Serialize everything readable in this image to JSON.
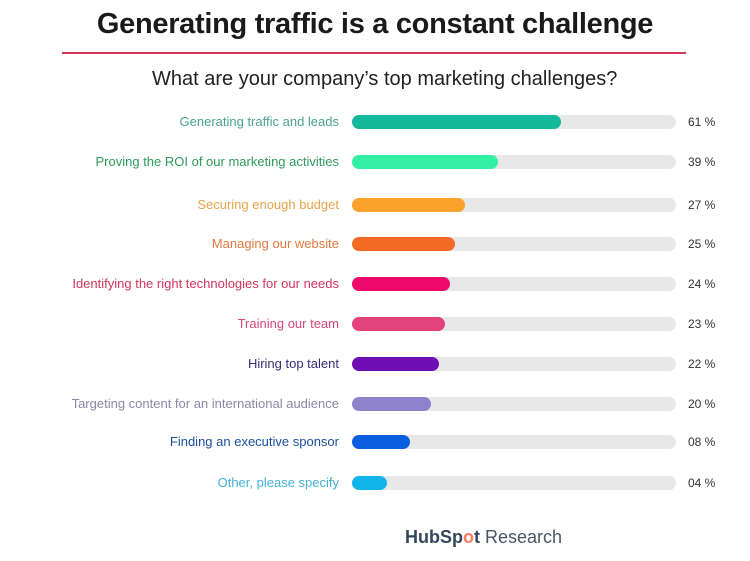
{
  "header": {
    "title": "Generating traffic is a constant challenge",
    "subtitle": "What are your company’s top marketing challenges?",
    "rule_color": "#d6335b"
  },
  "chart_data": {
    "type": "bar",
    "orientation": "horizontal",
    "title": "Generating traffic is a constant challenge",
    "subtitle": "What are your company’s top marketing challenges?",
    "xlabel": "",
    "ylabel": "",
    "xlim": [
      0,
      100
    ],
    "grid": false,
    "legend": "none",
    "categories": [
      "Generating traffic and leads",
      "Proving the ROI of our marketing activities",
      "Securing enough budget",
      "Managing our website",
      "Identifying the right technologies for our needs",
      "Training our team",
      "Hiring top talent",
      "Targeting content for an international audience",
      "Finding an executive sponsor",
      "Other, please specify"
    ],
    "values": [
      61,
      39,
      27,
      25,
      24,
      23,
      22,
      20,
      8,
      4
    ],
    "value_labels": [
      "61 %",
      "39 %",
      "27 %",
      "25 %",
      "24 %",
      "23 %",
      "22 %",
      "20 %",
      "08 %",
      "04 %"
    ],
    "colors": [
      "#13b99a",
      "#34f0a4",
      "#fba22a",
      "#f46b26",
      "#ee0a6a",
      "#e2437a",
      "#6f0fb3",
      "#8e82cc",
      "#0a5fe0",
      "#12b4ec"
    ],
    "label_colors": [
      "#4aa38f",
      "#2e9a5c",
      "#e8a24a",
      "#e0773f",
      "#d2355f",
      "#d5477b",
      "#3b2a7a",
      "#8a88a8",
      "#1a4f9e",
      "#43b1d8"
    ]
  },
  "rows": [
    {
      "label": "Generating traffic and leads",
      "pct": "61 %"
    },
    {
      "label": "Proving the ROI of our marketing activities",
      "pct": "39 %"
    },
    {
      "label": "Securing enough budget",
      "pct": "27 %"
    },
    {
      "label": "Managing our website",
      "pct": "25 %"
    },
    {
      "label": "Identifying the right technologies for our needs",
      "pct": "24 %"
    },
    {
      "label": "Training our team",
      "pct": "23 %"
    },
    {
      "label": "Hiring top talent",
      "pct": "22 %"
    },
    {
      "label": "Targeting content for an international audience",
      "pct": "20 %"
    },
    {
      "label": "Finding an executive sponsor",
      "pct": "08 %"
    },
    {
      "label": "Other, please specify",
      "pct": "04 %"
    }
  ],
  "footer": {
    "brand_part1": "HubSp",
    "brand_icon": "sprocket-icon",
    "brand_part2": "t",
    "brand_suffix": " Research"
  }
}
